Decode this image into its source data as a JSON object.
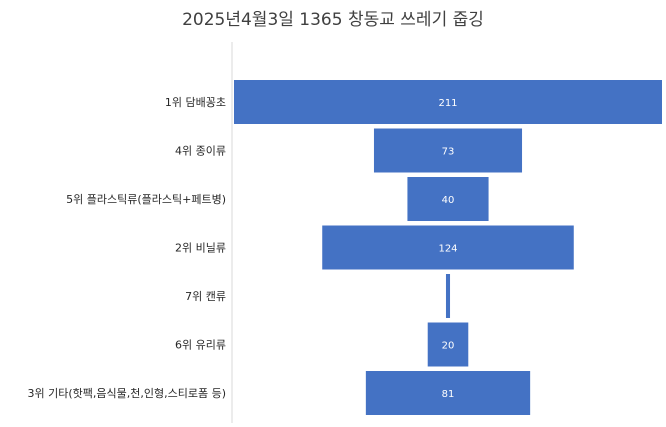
{
  "chart_data": {
    "type": "bar",
    "title": "2025년4월3일 1365 창동교 쓰레기 줍깅",
    "categories": [
      "1위 담배꽁초",
      "4위 종이류",
      "5위 플라스틱류(플라스틱+페트병)",
      "2위 비닐류",
      "7위 캔류",
      "6위 유리류",
      "3위 기타(핫팩,음식물,천,인형,스티로폼 등)"
    ],
    "values": [
      211,
      73,
      40,
      124,
      2,
      20,
      81
    ],
    "data_labels": [
      "211",
      "73",
      "40",
      "124",
      "",
      "20",
      "81"
    ],
    "xlabel": "",
    "ylabel": "",
    "grid": false,
    "orientation": "horizontal-funnel",
    "bar_color": "#4472C4"
  }
}
